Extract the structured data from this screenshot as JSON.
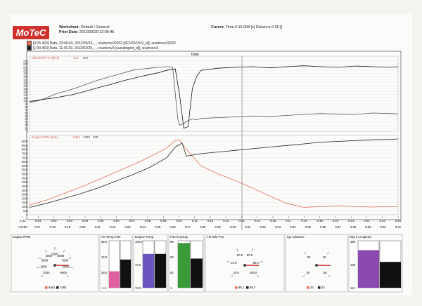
{
  "brand": {
    "logo_text": "MoTeC"
  },
  "header": {
    "worksheet_label": "Worksheet:",
    "worksheet_value": "Default / General",
    "print_date_label": "Print Date:",
    "print_date_value": "2012/03/29 12:06:45",
    "cursor_label": "Cursor:",
    "cursor_value": "Time 0:16.008 [s]  Distance 0.00 []"
  },
  "legend": {
    "line1": "[0:25.403] Data, 23:46:43, 2012/03/23, , , scudvvvv20202 [SCUDVVVV_Id], scudvvvv20202",
    "line2": "[1:00.463] Data, 11:41:29, 2012/03/25, , , scudvvvv3 [suzukisport_Id], scudvvvv3",
    "color1": "#e07050",
    "color2": "#222222"
  },
  "plot_title": "Data",
  "chart_data": [
    {
      "type": "line",
      "name": "Manifold Pres",
      "header": "Manifold Pres [kPa]",
      "header_values": [
        "213",
        "207"
      ],
      "ylim": [
        0,
        235
      ],
      "yticks": [
        0,
        10,
        20,
        30,
        40,
        50,
        60,
        70,
        80,
        90,
        100,
        110,
        120,
        130,
        140,
        150,
        160,
        170,
        180,
        190,
        200,
        210,
        220,
        230
      ],
      "series": [
        {
          "color": "#555555",
          "x": [
            0,
            1,
            2,
            3,
            4,
            5,
            6,
            7,
            8,
            9,
            10,
            11,
            12,
            13,
            14,
            15,
            16,
            16.7,
            17.3,
            17.5,
            18,
            18.5,
            19,
            19.5,
            20,
            22,
            24,
            26,
            28,
            30,
            32,
            34,
            36,
            38,
            40,
            42,
            43
          ],
          "values": [
            95,
            100,
            110,
            122,
            130,
            138,
            148,
            158,
            168,
            176,
            184,
            192,
            200,
            204,
            207,
            210,
            212,
            210,
            40,
            20,
            25,
            35,
            40,
            38,
            42,
            45,
            47,
            50,
            48,
            52,
            55,
            58,
            56,
            55,
            60,
            58,
            57
          ]
        },
        {
          "color": "#111111",
          "x": [
            0,
            1,
            2,
            3,
            4,
            5,
            6,
            7,
            8,
            9,
            10,
            11,
            12,
            13,
            14,
            15,
            16,
            17,
            17.5,
            18,
            18.5,
            19,
            19.5,
            20,
            22,
            24,
            26,
            28,
            30,
            32,
            34,
            36,
            38,
            40,
            42,
            43
          ],
          "values": [
            98,
            102,
            106,
            110,
            115,
            120,
            127,
            135,
            143,
            150,
            158,
            166,
            173,
            180,
            186,
            192,
            200,
            205,
            120,
            10,
            15,
            140,
            180,
            200,
            207,
            210,
            212,
            208,
            212,
            215,
            212,
            210,
            214,
            212,
            210,
            212
          ]
        }
      ]
    },
    {
      "type": "line",
      "name": "Engine RPM",
      "header": "Engine RPM [rpm]",
      "header_values": [
        "8461",
        "7483",
        "978"
      ],
      "ylim": [
        0,
        9300
      ],
      "yticks": [
        0,
        500,
        1000,
        1500,
        2000,
        2500,
        3000,
        3500,
        4000,
        4500,
        5000,
        5500,
        6000,
        6500,
        7000,
        7500,
        8000,
        8500,
        9000
      ],
      "series": [
        {
          "color": "#e07050",
          "x": [
            0,
            2,
            4,
            6,
            8,
            10,
            12,
            14,
            16,
            17,
            17.5,
            18,
            20,
            22,
            24,
            26,
            28,
            30,
            32,
            34,
            36,
            38,
            40,
            42,
            43
          ],
          "values": [
            1200,
            1800,
            2600,
            3400,
            4300,
            5200,
            6100,
            7100,
            8200,
            9100,
            9200,
            8400,
            6000,
            5000,
            4200,
            3300,
            2300,
            1400,
            900,
            1000,
            1100,
            1000,
            950,
            1000,
            1000
          ]
        },
        {
          "color": "#222222",
          "x": [
            0,
            2,
            4,
            6,
            8,
            10,
            12,
            14,
            16,
            17,
            17.8,
            18.3,
            20,
            22,
            24,
            26,
            28,
            30,
            32,
            34,
            36,
            38,
            40,
            42,
            43
          ],
          "values": [
            900,
            1400,
            2000,
            2600,
            3300,
            4100,
            4900,
            5800,
            7000,
            8300,
            8800,
            7200,
            7500,
            7700,
            7900,
            8100,
            8300,
            8500,
            8700,
            8900,
            9000,
            9100,
            9200,
            9250,
            9300
          ]
        }
      ]
    }
  ],
  "time_axis": {
    "top_row": [
      "-1:31",
      "0:01",
      "0:02",
      "0:03",
      "0:04",
      "0:05",
      "0:06",
      "0:07",
      "0:08",
      "0:09",
      "0:10",
      "0:11",
      "0:12",
      "0:13",
      "0:14",
      "0:15",
      "0:16",
      "0:17",
      "0:18",
      "0:19",
      "0:20",
      "0:21",
      "0:22",
      "0:23",
      "0:24"
    ],
    "bottom_row": [
      "+15:00",
      "0:17",
      "0:18",
      "0:19",
      "0:20",
      "0:21",
      "0:22",
      "0:23",
      "0:24",
      "0:25",
      "0:26",
      "0:27",
      "0:28",
      "0:29",
      "0:30",
      "0:31",
      "0:32",
      "0:33",
      "0:34",
      "0:35",
      "0:36",
      "0:37",
      "0:38",
      "0:39",
      "0:40",
      "0:41"
    ]
  },
  "gauges": [
    {
      "type": "dial",
      "title": "Engine RPM",
      "ticks": [
        "1000",
        "2000",
        "3000",
        "4000",
        "5000",
        "6000",
        "7000",
        "8000",
        "9000"
      ],
      "values": [
        "8461",
        "7483"
      ],
      "colors": [
        "#e07050",
        "#222222"
      ]
    },
    {
      "type": "bars",
      "title": "Air Temp Inlet",
      "scale": [
        "55.0",
        "16.0",
        "28.0",
        "-1.0"
      ],
      "fills": [
        0.35,
        0.6
      ],
      "colors": [
        "#e060a0",
        "#111111"
      ]
    },
    {
      "type": "bars",
      "title": "Engine Temp",
      "scale": [
        "109.0",
        "72.0",
        "72.0"
      ],
      "fills": [
        0.72,
        0.72
      ],
      "colors": [
        "#6a55c0",
        "#111111"
      ]
    },
    {
      "type": "bars",
      "title": "Fuel Inj Duty",
      "scale": [
        "89",
        "80",
        "62",
        "1"
      ],
      "fills": [
        0.95,
        0.62
      ],
      "colors": [
        "#3a9a3a",
        "#111111"
      ]
    },
    {
      "type": "dial",
      "title": "Throttle Pos",
      "ticks": [
        "20.0",
        "40.0",
        "60.0",
        "80.0",
        "90.0",
        "100.0"
      ],
      "values": [
        "86.1",
        "99.7"
      ],
      "colors": [
        "#e07050",
        "#222222"
      ]
    },
    {
      "type": "dial",
      "title": "Ign Advance",
      "ticks": [
        "20",
        "30",
        "40",
        "50"
      ],
      "values": [
        "24",
        "24"
      ],
      "colors": [
        "#e07050",
        "#222222"
      ]
    },
    {
      "type": "bars",
      "title": "Dig In 2 Speed",
      "scale": [
        "180",
        "138",
        "112"
      ],
      "fills": [
        0.8,
        0.55
      ],
      "colors": [
        "#8a4ab0",
        "#111111"
      ]
    }
  ]
}
